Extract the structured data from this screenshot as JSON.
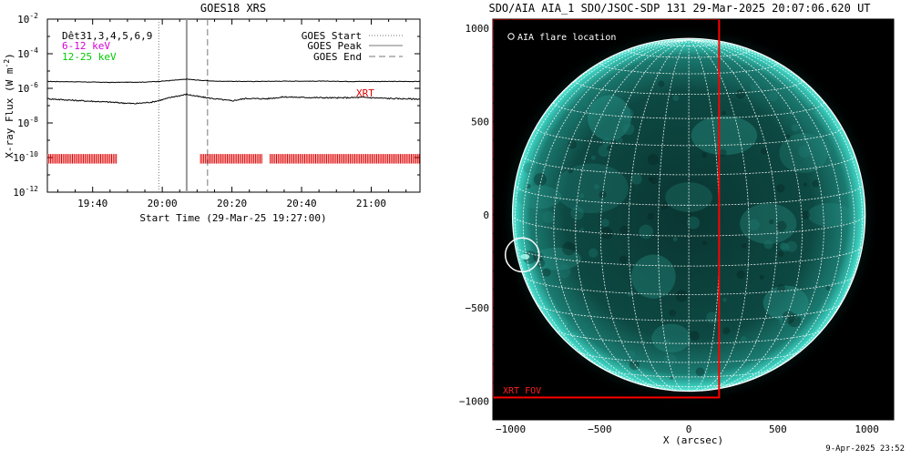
{
  "chart_data": [
    {
      "type": "line",
      "title": "GOES18 XRS",
      "xlabel": "Start Time (29-Mar-25 19:27:00)",
      "ylabel": "X-ray Flux (W m",
      "ylabel_sup": "-2",
      "ylabel_close": ")",
      "y_scale": "log",
      "ylim": [
        "1e-12",
        "1e-2"
      ],
      "y_ticks": [
        {
          "exp": -2,
          "label": "10",
          "sup": "-2"
        },
        {
          "exp": -4,
          "label": "10",
          "sup": "-4"
        },
        {
          "exp": -6,
          "label": "10",
          "sup": "-6"
        },
        {
          "exp": -8,
          "label": "10",
          "sup": "-8"
        },
        {
          "exp": -10,
          "label": "10",
          "sup": "-10"
        },
        {
          "exp": -12,
          "label": "10",
          "sup": "-12"
        }
      ],
      "xlim": [
        "19:27",
        "21:14"
      ],
      "x_ticks": [
        "19:40",
        "20:00",
        "20:20",
        "20:40",
        "21:00"
      ],
      "legend_left": [
        {
          "label": "Dêt31,3,4,5,6,9",
          "color": "#000000"
        },
        {
          "label": "6-12 keV",
          "color": "#d400d4"
        },
        {
          "label": "12-25 keV",
          "color": "#00cc00"
        }
      ],
      "legend_right": [
        {
          "label": "GOES Start",
          "style": "dotted"
        },
        {
          "label": "GOES Peak",
          "style": "solid"
        },
        {
          "label": "GOES End",
          "style": "dashed"
        }
      ],
      "markers": {
        "goes_start": "19:59",
        "goes_peak": "20:07",
        "goes_end": "20:13"
      },
      "xrt_label": "XRT",
      "xrt_coverage": [
        [
          "19:27",
          "19:47"
        ],
        [
          "20:11",
          "20:29"
        ],
        [
          "20:31",
          "21:14"
        ]
      ],
      "series": [
        {
          "color": "#000000",
          "x": [
            "19:27",
            "19:35",
            "19:45",
            "19:55",
            "20:00",
            "20:04",
            "20:07",
            "20:10",
            "20:15",
            "20:25",
            "20:35",
            "20:45",
            "20:55",
            "21:05",
            "21:14"
          ],
          "values": [
            "2.5e-6",
            "2.4e-6",
            "2.2e-6",
            "2.3e-6",
            "2.6e-6",
            "3.0e-6",
            "3.4e-6",
            "3.0e-6",
            "2.6e-6",
            "2.5e-6",
            "2.6e-6",
            "2.6e-6",
            "2.5e-6",
            "2.5e-6",
            "2.5e-6"
          ]
        },
        {
          "color": "#000000",
          "x": [
            "19:27",
            "19:35",
            "19:45",
            "19:52",
            "19:57",
            "20:00",
            "20:03",
            "20:07",
            "20:11",
            "20:15",
            "20:20",
            "20:24",
            "20:30",
            "20:35",
            "20:40",
            "20:50",
            "20:58",
            "21:05",
            "21:14"
          ],
          "values": [
            "2.5e-7",
            "2.0e-7",
            "1.6e-7",
            "1.3e-7",
            "1.6e-7",
            "2.2e-7",
            "3.2e-7",
            "4.5e-7",
            "3.2e-7",
            "2.5e-7",
            "1.9e-7",
            "2.6e-7",
            "2.5e-7",
            "3.2e-7",
            "3.0e-7",
            "2.8e-7",
            "3.0e-7",
            "2.6e-7",
            "2.4e-7"
          ]
        }
      ]
    },
    {
      "type": "image",
      "title": "SDO/AIA AIA_1 SDO/JSOC-SDP 131 29-Mar-2025 20:07:06.620 UT",
      "xlabel": "X (arcsec)",
      "xlim": [
        -1100,
        1150
      ],
      "ylim": [
        -1100,
        1050
      ],
      "x_ticks": [
        -1000,
        -500,
        0,
        500,
        1000
      ],
      "y_ticks": [
        1000,
        500,
        0,
        -500,
        -1000
      ],
      "solar_radius": 990,
      "flare_location": {
        "x": -935,
        "y": -215,
        "radius": 95
      },
      "flare_label": "AIA flare location",
      "xrt_fov": {
        "x0": -1100,
        "x1": 170,
        "y0": -980,
        "y1": 1050
      },
      "xrt_fov_label": "XRT FOV",
      "colors": {
        "disk": "#0e4a45",
        "limb": "#43e0d0",
        "grid": "#ffffff",
        "fov": "#ff0000"
      }
    }
  ],
  "footer": {
    "timestamp": "9-Apr-2025 23:52"
  }
}
